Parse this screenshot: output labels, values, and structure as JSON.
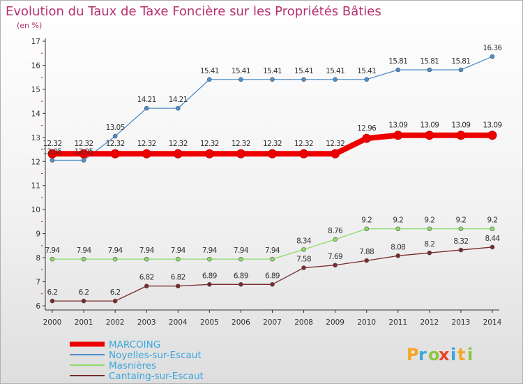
{
  "header": {
    "title": "Evolution du Taux de Taxe Foncière sur les Propriétés Bâties",
    "subtitle": "(en %)"
  },
  "logo": {
    "letters": [
      "P",
      "r",
      "o",
      "x",
      "i",
      "t",
      "i"
    ],
    "colors": [
      "#f7a520",
      "#3aa6dc",
      "#8dc63f",
      "#e8432a",
      "#3aa6dc",
      "#f7a520",
      "#8dc63f"
    ]
  },
  "chart_data": {
    "type": "line",
    "title": "Evolution du Taux de Taxe Foncière sur les Propriétés Bâties",
    "ylabel": "(en %)",
    "xlabel": "",
    "ylim": [
      6,
      17
    ],
    "yticks": [
      6,
      7,
      8,
      9,
      10,
      11,
      12,
      13,
      14,
      15,
      16,
      17
    ],
    "x": [
      "2000",
      "2001",
      "2002",
      "2003",
      "2004",
      "2005",
      "2006",
      "2007",
      "2008",
      "2009",
      "2010",
      "2011",
      "2012",
      "2013",
      "2014"
    ],
    "grid": false,
    "legend_position": "bottom-left",
    "series": [
      {
        "name": "MARCOING",
        "color": "#ee0000",
        "values": [
          12.32,
          12.32,
          12.32,
          12.32,
          12.32,
          12.32,
          12.32,
          12.32,
          12.32,
          12.32,
          12.96,
          13.09,
          13.09,
          13.09,
          13.09
        ],
        "labels": [
          "12.32",
          "12.32",
          "12.32",
          "12.32",
          "12.32",
          "12.32",
          "12.32",
          "12.32",
          "12.32",
          "12.32",
          "12.96",
          "13.09",
          "13.09",
          "13.09",
          "13.09"
        ]
      },
      {
        "name": "Noyelles-sur-Escaut",
        "color": "#4d8fcc",
        "values": [
          12.05,
          12.05,
          13.05,
          14.21,
          14.21,
          15.41,
          15.41,
          15.41,
          15.41,
          15.41,
          15.41,
          15.81,
          15.81,
          15.81,
          16.36
        ],
        "labels": [
          "12.05",
          "12.05",
          "13.05",
          "14.21",
          "14.21",
          "15.41",
          "15.41",
          "15.41",
          "15.41",
          "15.41",
          "15.41",
          "15.81",
          "15.81",
          "15.81",
          "16.36"
        ]
      },
      {
        "name": "Masnières",
        "color": "#8edb6a",
        "values": [
          7.94,
          7.94,
          7.94,
          7.94,
          7.94,
          7.94,
          7.94,
          7.94,
          8.34,
          8.76,
          9.2,
          9.2,
          9.2,
          9.2,
          9.2
        ],
        "labels": [
          "7.94",
          "7.94",
          "7.94",
          "7.94",
          "7.94",
          "7.94",
          "7.94",
          "7.94",
          "8.34",
          "8.76",
          "9.2",
          "9.2",
          "9.2",
          "9.2",
          "9.2"
        ]
      },
      {
        "name": "Cantaing-sur-Escaut",
        "color": "#7a2a2a",
        "values": [
          6.2,
          6.2,
          6.2,
          6.82,
          6.82,
          6.89,
          6.89,
          6.89,
          7.58,
          7.69,
          7.88,
          8.08,
          8.2,
          8.32,
          8.44
        ],
        "labels": [
          "6.2",
          "6.2",
          "6.2",
          "6.82",
          "6.82",
          "6.89",
          "6.89",
          "6.89",
          "7.58",
          "7.69",
          "7.88",
          "8.08",
          "8.2",
          "8.32",
          "8.44"
        ]
      }
    ]
  }
}
